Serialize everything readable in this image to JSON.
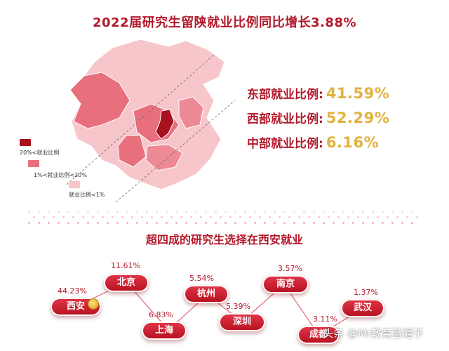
{
  "title": "2022届研究生留陕就业比例同比增长3.88%",
  "map": {
    "legend": [
      {
        "label": "20%<就业比例",
        "color": "#a8121f"
      },
      {
        "label": "1%<就业比例<20%",
        "color": "#e8707c"
      },
      {
        "label": "就业比例<1%",
        "color": "#f6c6cb"
      }
    ]
  },
  "stats": [
    {
      "label": "东部就业比例:",
      "value": "41.59%"
    },
    {
      "label": "西部就业比例:",
      "value": "52.29%"
    },
    {
      "label": "中部就业比例:",
      "value": "6.16%"
    }
  ],
  "subtitle": "超四成的研究生选择在西安就业",
  "chart_data": {
    "type": "bar",
    "title": "超四成的研究生选择在西安就业",
    "categories": [
      "西安",
      "北京",
      "上海",
      "杭州",
      "深圳",
      "南京",
      "成都",
      "武汉"
    ],
    "values": [
      44.23,
      11.61,
      6.83,
      5.54,
      5.39,
      3.57,
      3.11,
      1.37
    ],
    "value_labels": [
      "44.23%",
      "11.61%",
      "6.83%",
      "5.54%",
      "5.39%",
      "3.57%",
      "3.11%",
      "1.37%"
    ]
  },
  "watermark": "头条 @Mr教育蓝帽子",
  "colors": {
    "brand_red": "#b3192b",
    "gold": "#e2b23d"
  }
}
